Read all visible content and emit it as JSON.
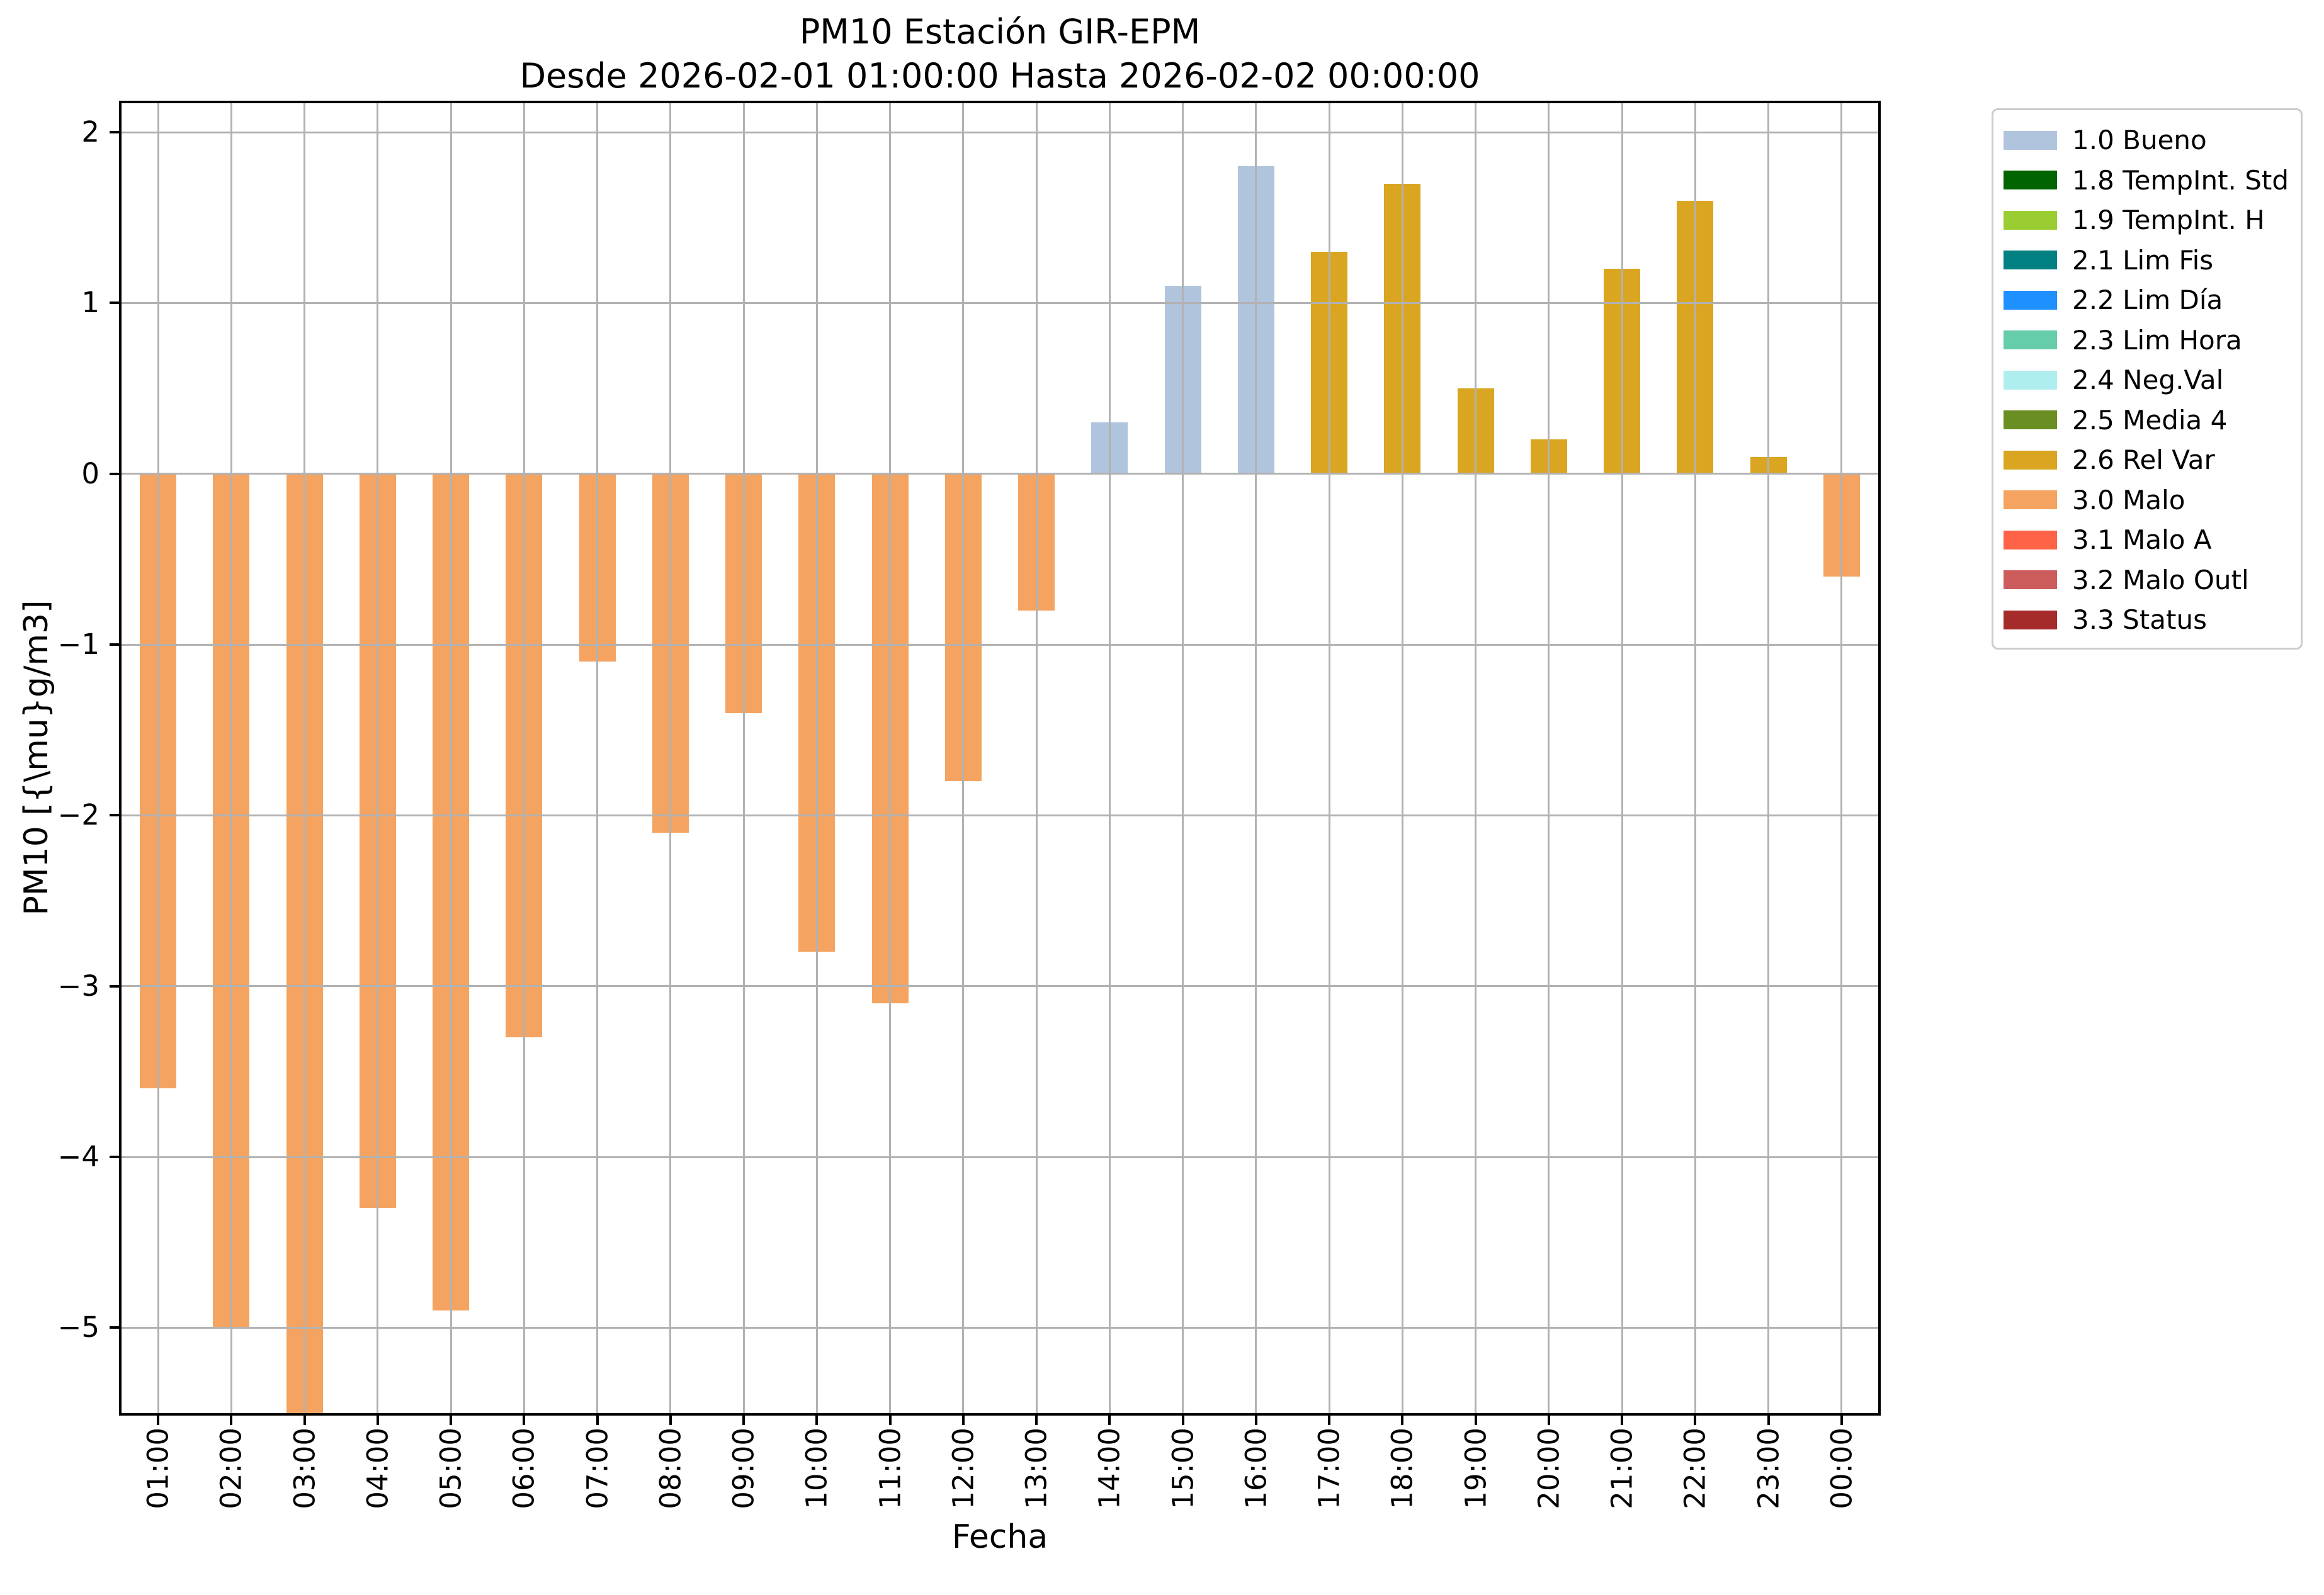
{
  "title": {
    "line1": "PM10 Estación GIR-EPM",
    "line2": "Desde 2026-02-01 01:00:00 Hasta 2026-02-02 00:00:00"
  },
  "axes": {
    "xlabel": "Fecha",
    "ylabel": "PM10 [{\\mu}g/m3]"
  },
  "legend": {
    "items": [
      {
        "label": "1.0 Bueno",
        "color": "#b0c4de"
      },
      {
        "label": "1.8 TempInt. Std",
        "color": "#006400"
      },
      {
        "label": "1.9 TempInt. H",
        "color": "#9acd32"
      },
      {
        "label": "2.1 Lim Fis",
        "color": "#008080"
      },
      {
        "label": "2.2 Lim Día",
        "color": "#1e90ff"
      },
      {
        "label": "2.3 Lim Hora",
        "color": "#66cdaa"
      },
      {
        "label": "2.4 Neg.Val",
        "color": "#afeeee"
      },
      {
        "label": "2.5 Media 4",
        "color": "#6b8e23"
      },
      {
        "label": "2.6 Rel Var",
        "color": "#daa520"
      },
      {
        "label": "3.0 Malo",
        "color": "#f4a460"
      },
      {
        "label": "3.1 Malo A",
        "color": "#ff6347"
      },
      {
        "label": "3.2 Malo Outl",
        "color": "#cd5c5c"
      },
      {
        "label": "3.3 Status",
        "color": "#a52a2a"
      }
    ]
  },
  "chart_data": {
    "type": "bar",
    "title": "PM10 Estación GIR-EPM",
    "subtitle": "Desde 2026-02-01 01:00:00 Hasta 2026-02-02 00:00:00",
    "xlabel": "Fecha",
    "ylabel": "PM10 [{\\mu}g/m3]",
    "categories": [
      "01:00",
      "02:00",
      "03:00",
      "04:00",
      "05:00",
      "06:00",
      "07:00",
      "08:00",
      "09:00",
      "10:00",
      "11:00",
      "12:00",
      "13:00",
      "14:00",
      "15:00",
      "16:00",
      "17:00",
      "18:00",
      "19:00",
      "20:00",
      "21:00",
      "22:00",
      "23:00",
      "00:00"
    ],
    "values": [
      -3.6,
      -5.0,
      -6.0,
      -4.3,
      -4.9,
      -3.3,
      -1.1,
      -2.1,
      -1.4,
      -2.8,
      -3.1,
      -1.8,
      -0.8,
      0.3,
      1.1,
      1.8,
      1.3,
      1.7,
      0.5,
      0.2,
      1.2,
      1.6,
      0.1,
      -0.6
    ],
    "statuses": [
      "3.0 Malo",
      "3.0 Malo",
      "3.0 Malo",
      "3.0 Malo",
      "3.0 Malo",
      "3.0 Malo",
      "3.0 Malo",
      "3.0 Malo",
      "3.0 Malo",
      "3.0 Malo",
      "3.0 Malo",
      "3.0 Malo",
      "3.0 Malo",
      "1.0 Bueno",
      "1.0 Bueno",
      "1.0 Bueno",
      "2.6 Rel Var",
      "2.6 Rel Var",
      "2.6 Rel Var",
      "2.6 Rel Var",
      "2.6 Rel Var",
      "2.6 Rel Var",
      "2.6 Rel Var",
      "3.0 Malo"
    ],
    "status_colors": {
      "1.0 Bueno": "#b0c4de",
      "2.6 Rel Var": "#daa520",
      "3.0 Malo": "#f4a460"
    },
    "clipped_bars": [
      "03:00"
    ],
    "yticks": [
      2,
      1,
      0,
      -1,
      -2,
      -3,
      -4,
      -5
    ],
    "ylim": [
      -5.5,
      2.17
    ],
    "bar_width_fraction": 0.5,
    "grid": true,
    "grid_color": "#b2b2b2",
    "legend_position": "outside upper right"
  }
}
